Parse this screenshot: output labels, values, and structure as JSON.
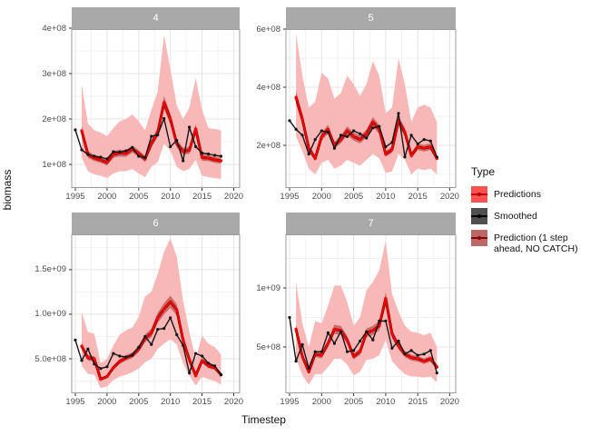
{
  "figure": {
    "y_axis_title": "biomass",
    "x_axis_title": "Timestep",
    "legend": {
      "title": "Type",
      "items": [
        {
          "label": "Predictions",
          "fill": "#fa5252",
          "line": "#cc0000",
          "point": "#b30000"
        },
        {
          "label": "Smoothed",
          "fill": "#4f4f4f",
          "line": "#000000",
          "point": "#000000"
        },
        {
          "label": "Prediction (1 step\n ahead, NO CATCH)",
          "fill": "#bd6868",
          "line": "#8b0000",
          "point": "#8b0000"
        }
      ]
    }
  },
  "chart_data": {
    "type": "line",
    "title": "",
    "xlabel": "Timestep",
    "ylabel": "biomass",
    "facets": [
      "4",
      "5",
      "6",
      "7"
    ],
    "grid": "on",
    "legend_position": "right",
    "values_unit": 100000000.0,
    "xlim": [
      1994.43,
      2020.93
    ],
    "x_major": [
      1995,
      2000,
      2005,
      2010,
      2015,
      2020
    ],
    "x_tick_labels": [
      "1995",
      "2000",
      "2005",
      "2010",
      "2015",
      "2020"
    ],
    "x_minor": [
      1997.5,
      2002.5,
      2007.5,
      2012.5,
      2017.5
    ],
    "x_smoothed": [
      1995,
      1996,
      1997,
      1998,
      1999,
      2000,
      2001,
      2002,
      2003,
      2004,
      2005,
      2006,
      2007,
      2008,
      2009,
      2010,
      2011,
      2012,
      2013,
      2014,
      2015,
      2016,
      2017,
      2018
    ],
    "x_pred": [
      1996,
      1997,
      1998,
      1999,
      2000,
      2001,
      2002,
      2003,
      2004,
      2005,
      2006,
      2007,
      2008,
      2009,
      2010,
      2011,
      2012,
      2013,
      2014,
      2015,
      2016,
      2017,
      2018
    ],
    "band_frac": 0.06,
    "colors": {
      "ribbon": "#f9b8b8",
      "band": "#c25e5e",
      "pred_line": "#ff0000",
      "pred1_line": "#8b0000",
      "smooth_line": "#151515",
      "grid_major": "#e4e4e4",
      "grid_minor": "#f2f2f2",
      "border": "#9b9b9b",
      "tick": "#333333",
      "strip_fill": "#a9a9a9",
      "strip_text": "#ffffff"
    },
    "panels": [
      {
        "facet": "4",
        "ylim": [
          0.48,
          3.98
        ],
        "y_ticks": [
          {
            "v": 4,
            "l": "4e+08"
          },
          {
            "v": 3,
            "l": "3e+08"
          },
          {
            "v": 2,
            "l": "2e+08"
          },
          {
            "v": 1,
            "l": "1e+08"
          }
        ],
        "y_minor": [
          0.5,
          1.5,
          2.5,
          3.5
        ],
        "smoothed": [
          1.76,
          1.32,
          1.22,
          1.18,
          1.16,
          1.12,
          1.28,
          1.27,
          1.3,
          1.37,
          1.18,
          1.15,
          1.62,
          1.65,
          2.01,
          1.39,
          1.53,
          1.08,
          1.82,
          1.39,
          1.25,
          1.23,
          1.2,
          1.18
        ],
        "predictions": [
          1.74,
          1.22,
          1.14,
          1.1,
          1.04,
          1.22,
          1.25,
          1.24,
          1.34,
          1.24,
          1.12,
          1.46,
          1.7,
          2.36,
          2.0,
          1.46,
          1.29,
          1.31,
          1.78,
          1.15,
          1.14,
          1.1,
          1.08
        ],
        "ribbon_upper": [
          2.75,
          1.9,
          1.75,
          1.7,
          1.62,
          1.8,
          1.95,
          2.0,
          2.1,
          1.95,
          1.75,
          2.2,
          2.6,
          3.85,
          3.1,
          2.3,
          2.0,
          2.25,
          2.9,
          2.2,
          1.8,
          1.78,
          1.75
        ],
        "ribbon_lower": [
          1.15,
          0.85,
          0.78,
          0.75,
          0.7,
          0.8,
          0.85,
          0.85,
          0.9,
          0.8,
          0.72,
          0.95,
          1.05,
          1.45,
          1.3,
          0.95,
          0.85,
          0.9,
          1.1,
          0.75,
          0.72,
          0.7,
          0.68
        ]
      },
      {
        "facet": "5",
        "ylim": [
          0.53,
          6.0
        ],
        "y_ticks": [
          {
            "v": 6,
            "l": "6e+08"
          },
          {
            "v": 4,
            "l": "4e+08"
          },
          {
            "v": 2,
            "l": "2e+08"
          }
        ],
        "y_minor": [
          1,
          3,
          5
        ],
        "smoothed": [
          2.85,
          2.55,
          2.35,
          1.7,
          2.2,
          2.5,
          2.45,
          1.9,
          2.35,
          2.3,
          2.5,
          2.4,
          2.25,
          2.6,
          2.65,
          1.95,
          2.1,
          3.1,
          1.6,
          2.35,
          2.05,
          2.2,
          2.15,
          1.6
        ],
        "predictions": [
          3.65,
          2.9,
          1.9,
          1.55,
          2.3,
          2.55,
          2.0,
          2.2,
          2.5,
          2.3,
          2.2,
          2.4,
          2.8,
          2.55,
          1.7,
          1.85,
          2.85,
          2.45,
          1.65,
          1.95,
          1.9,
          1.95,
          1.55
        ],
        "ribbon_upper": [
          5.85,
          4.4,
          3.3,
          3.5,
          4.5,
          4.3,
          3.6,
          3.8,
          4.4,
          4.1,
          3.7,
          4.1,
          4.9,
          4.4,
          3.1,
          3.3,
          5.0,
          4.1,
          2.8,
          3.3,
          3.4,
          3.3,
          2.8
        ],
        "ribbon_lower": [
          2.3,
          1.8,
          1.2,
          1.0,
          1.4,
          1.5,
          1.2,
          1.3,
          1.5,
          1.4,
          1.3,
          1.5,
          1.7,
          1.55,
          1.05,
          1.1,
          1.7,
          1.5,
          1.0,
          1.2,
          1.15,
          1.2,
          1.0
        ]
      },
      {
        "facet": "6",
        "ylim": [
          1.12,
          18.97
        ],
        "y_ticks": [
          {
            "v": 15,
            "l": "1.5e+09"
          },
          {
            "v": 10,
            "l": "1.0e+09"
          },
          {
            "v": 5,
            "l": "5.0e+08"
          }
        ],
        "y_minor": [
          2.5,
          7.5,
          12.5,
          17.5
        ],
        "smoothed": [
          7.1,
          4.8,
          6.1,
          4.4,
          3.9,
          4.1,
          5.6,
          5.3,
          5.2,
          5.4,
          6.3,
          7.5,
          6.6,
          8.3,
          8.4,
          9.6,
          7.7,
          6.5,
          3.4,
          5.6,
          5.3,
          4.5,
          4.2,
          3.2
        ],
        "predictions": [
          6.4,
          5.1,
          5.0,
          2.7,
          3.0,
          4.0,
          4.7,
          5.1,
          5.4,
          6.1,
          7.3,
          7.9,
          9.6,
          10.6,
          11.4,
          10.5,
          7.1,
          4.9,
          3.1,
          4.8,
          4.2,
          4.0,
          3.2
        ],
        "ribbon_upper": [
          10.2,
          8.0,
          7.8,
          4.5,
          5.0,
          6.5,
          7.7,
          8.2,
          8.5,
          9.7,
          12.0,
          12.5,
          14.5,
          17.0,
          18.5,
          16.5,
          11.5,
          8.0,
          5.0,
          7.6,
          6.7,
          6.3,
          5.5
        ],
        "ribbon_lower": [
          4.2,
          3.3,
          3.2,
          1.7,
          1.9,
          2.6,
          3.0,
          3.2,
          3.5,
          3.9,
          4.6,
          5.0,
          6.1,
          6.7,
          7.2,
          6.6,
          4.5,
          3.1,
          2.0,
          3.0,
          2.7,
          2.5,
          2.1
        ]
      },
      {
        "facet": "7",
        "ylim": [
          1.08,
          14.54
        ],
        "y_ticks": [
          {
            "v": 10,
            "l": "1e+09"
          },
          {
            "v": 5,
            "l": "5e+08"
          }
        ],
        "y_minor": [
          2.5,
          7.5,
          12.5
        ],
        "smoothed": [
          7.5,
          3.8,
          5.2,
          3.2,
          4.6,
          4.6,
          6.2,
          5.3,
          6.3,
          4.6,
          4.7,
          5.5,
          6.3,
          5.6,
          7.2,
          7.2,
          4.9,
          5.5,
          4.4,
          4.7,
          4.3,
          4.4,
          4.7,
          2.8
        ],
        "predictions": [
          6.5,
          4.2,
          2.9,
          4.4,
          4.3,
          5.3,
          6.5,
          6.4,
          5.6,
          4.2,
          4.6,
          6.2,
          6.4,
          6.8,
          9.1,
          6.1,
          5.1,
          4.4,
          4.1,
          4.0,
          3.8,
          4.0,
          3.3
        ],
        "ribbon_upper": [
          10.5,
          7.0,
          5.0,
          7.2,
          7.0,
          8.5,
          10.2,
          10.2,
          8.8,
          6.8,
          7.5,
          9.8,
          10.5,
          11.5,
          14.0,
          9.5,
          8.0,
          6.8,
          6.3,
          6.2,
          6.0,
          6.2,
          5.0
        ],
        "ribbon_lower": [
          4.0,
          2.6,
          1.8,
          2.7,
          2.7,
          3.3,
          4.0,
          4.0,
          3.5,
          2.6,
          2.9,
          3.9,
          4.0,
          4.3,
          5.6,
          3.8,
          3.2,
          2.7,
          2.5,
          2.5,
          2.4,
          2.5,
          2.0
        ]
      }
    ]
  }
}
